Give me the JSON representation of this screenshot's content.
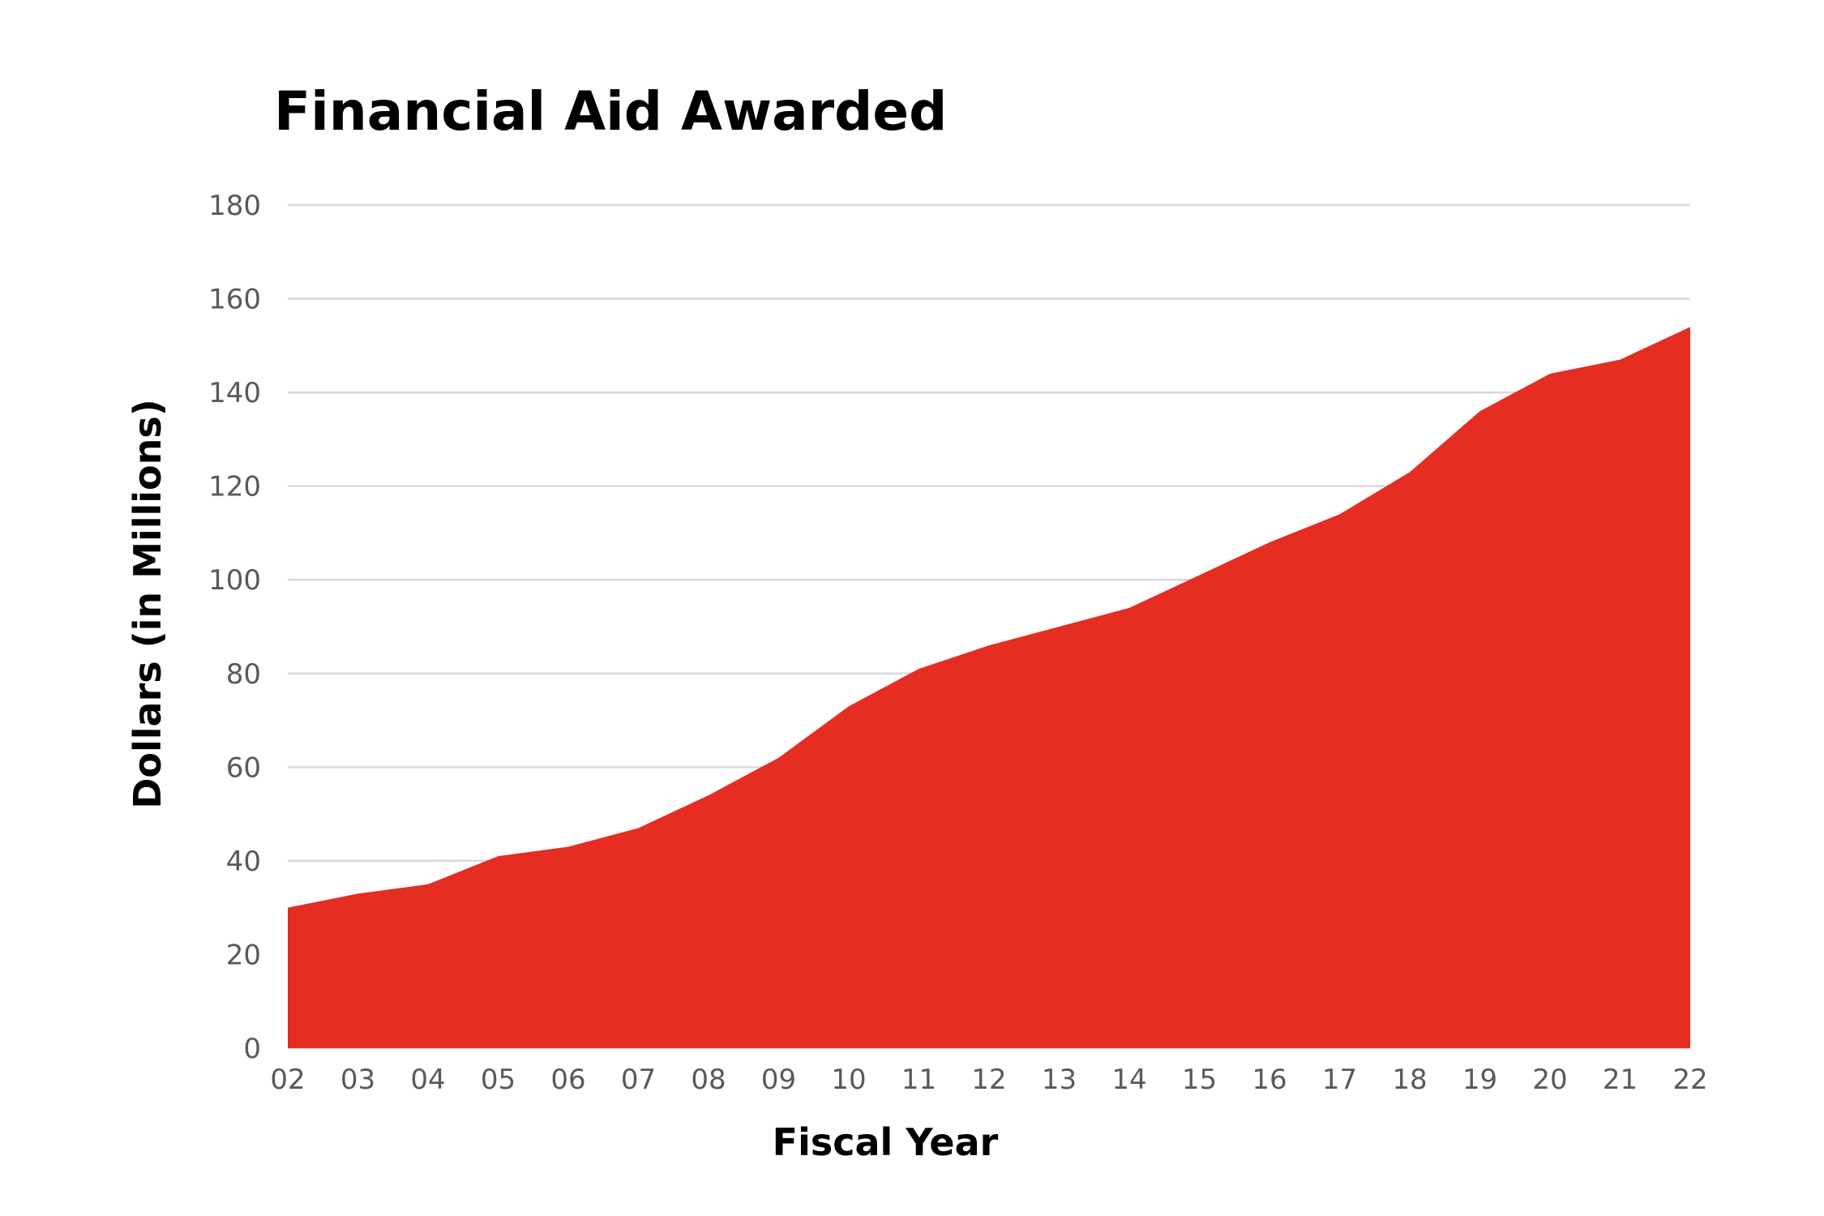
{
  "chart_data": {
    "type": "area",
    "title": "Financial Aid Awarded",
    "xlabel": "Fiscal Year",
    "ylabel": "Dollars (in Millions)",
    "x": [
      "02",
      "03",
      "04",
      "05",
      "06",
      "07",
      "08",
      "09",
      "10",
      "11",
      "12",
      "13",
      "14",
      "15",
      "16",
      "17",
      "18",
      "19",
      "20",
      "21",
      "22"
    ],
    "values": [
      30,
      33,
      35,
      41,
      43,
      47,
      54,
      62,
      73,
      81,
      86,
      90,
      94,
      101,
      108,
      114,
      123,
      136,
      144,
      147,
      154
    ],
    "ylim": [
      0,
      180
    ],
    "yticks": [
      0,
      20,
      40,
      60,
      80,
      100,
      120,
      140,
      160,
      180
    ],
    "grid": true,
    "legend": "none",
    "colors": {
      "area": "#e52d22",
      "grid": "#d9d9d9",
      "tick_text": "#58595b"
    }
  }
}
